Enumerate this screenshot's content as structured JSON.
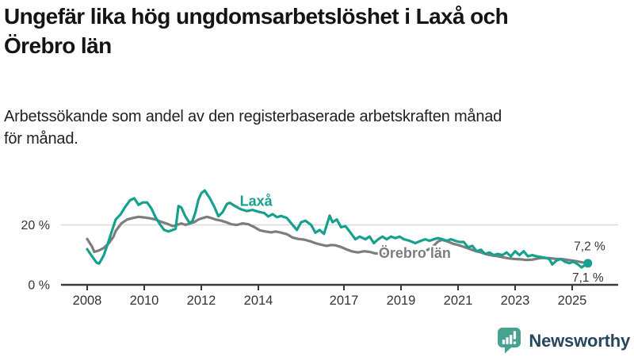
{
  "title": {
    "line1": "Ungefär lika hög ungdomsarbetslöshet i Laxå och",
    "line2": "Örebro län"
  },
  "subtitle": {
    "line1": "Arbetssökande som andel av den registerbaserade arbetskraften månad",
    "line2": "för månad."
  },
  "chart_data": {
    "type": "line",
    "title": "Ungefär lika hög ungdomsarbetslöshet i Laxå och Örebro län",
    "subtitle": "Arbetssökande som andel av den registerbaserade arbetskraften månad för månad.",
    "unit": "%",
    "x_range": [
      2008,
      2025.6
    ],
    "y_range": [
      0,
      33
    ],
    "grid": "horizontal-only",
    "legend_position": "inline-labels",
    "x_ticks": [
      "2008",
      "2010",
      "2012",
      "2014",
      "2017",
      "2019",
      "2021",
      "2023",
      "2025"
    ],
    "y_ticks": [
      {
        "value": 0,
        "label": "0 %"
      },
      {
        "value": 20,
        "label": "20 %"
      }
    ],
    "grid_color": "#d9d9d9",
    "axis_color": "#3c3c3c",
    "axis_text_color": "#333333",
    "series": [
      {
        "id": "orebro-lan",
        "name": "Örebro län",
        "color": "#7d7d7d",
        "end_dot": false,
        "label_at": [
          2018.22,
          10.3
        ],
        "last_value_label": "7,1 %",
        "points": [
          [
            2008.0,
            15.3
          ],
          [
            2008.17,
            12.8
          ],
          [
            2008.25,
            11.0
          ],
          [
            2008.42,
            11.5
          ],
          [
            2008.58,
            12.3
          ],
          [
            2008.75,
            13.8
          ],
          [
            2008.92,
            16.0
          ],
          [
            2009.0,
            18.0
          ],
          [
            2009.2,
            20.5
          ],
          [
            2009.4,
            21.8
          ],
          [
            2009.6,
            22.3
          ],
          [
            2009.8,
            22.7
          ],
          [
            2010.0,
            22.5
          ],
          [
            2010.2,
            22.2
          ],
          [
            2010.4,
            21.8
          ],
          [
            2010.6,
            21.0
          ],
          [
            2010.8,
            20.4
          ],
          [
            2011.0,
            19.6
          ],
          [
            2011.15,
            20.0
          ],
          [
            2011.3,
            20.5
          ],
          [
            2011.45,
            20.0
          ],
          [
            2011.6,
            20.5
          ],
          [
            2011.75,
            20.9
          ],
          [
            2011.9,
            21.8
          ],
          [
            2012.05,
            22.3
          ],
          [
            2012.2,
            22.7
          ],
          [
            2012.35,
            22.3
          ],
          [
            2012.5,
            21.8
          ],
          [
            2012.7,
            21.4
          ],
          [
            2012.9,
            20.8
          ],
          [
            2013.05,
            20.2
          ],
          [
            2013.25,
            20.0
          ],
          [
            2013.45,
            20.5
          ],
          [
            2013.65,
            20.2
          ],
          [
            2013.85,
            19.3
          ],
          [
            2014.05,
            18.2
          ],
          [
            2014.25,
            17.8
          ],
          [
            2014.45,
            17.5
          ],
          [
            2014.6,
            17.8
          ],
          [
            2014.8,
            17.4
          ],
          [
            2015.0,
            16.9
          ],
          [
            2015.2,
            15.8
          ],
          [
            2015.4,
            15.3
          ],
          [
            2015.6,
            15.1
          ],
          [
            2015.8,
            14.6
          ],
          [
            2016.0,
            13.9
          ],
          [
            2016.2,
            13.4
          ],
          [
            2016.4,
            13.0
          ],
          [
            2016.55,
            13.3
          ],
          [
            2016.7,
            13.2
          ],
          [
            2016.9,
            12.6
          ],
          [
            2017.1,
            11.8
          ],
          [
            2017.3,
            11.1
          ],
          [
            2017.5,
            10.8
          ],
          [
            2017.7,
            11.2
          ],
          [
            2017.9,
            11.0
          ],
          [
            2018.1,
            10.5
          ],
          [
            2018.3,
            10.4
          ],
          [
            2018.5,
            10.2
          ],
          [
            2018.7,
            10.4
          ],
          [
            2018.9,
            10.3
          ],
          [
            2019.1,
            10.1
          ],
          [
            2019.3,
            10.0
          ],
          [
            2019.5,
            10.2
          ],
          [
            2019.7,
            10.8
          ],
          [
            2019.9,
            11.5
          ],
          [
            2020.1,
            12.6
          ],
          [
            2020.3,
            14.5
          ],
          [
            2020.45,
            15.0
          ],
          [
            2020.6,
            14.6
          ],
          [
            2020.8,
            13.8
          ],
          [
            2021.0,
            13.3
          ],
          [
            2021.2,
            12.7
          ],
          [
            2021.4,
            12.0
          ],
          [
            2021.6,
            11.3
          ],
          [
            2021.8,
            10.8
          ],
          [
            2022.0,
            10.2
          ],
          [
            2022.2,
            9.8
          ],
          [
            2022.4,
            9.5
          ],
          [
            2022.6,
            9.1
          ],
          [
            2022.8,
            8.8
          ],
          [
            2023.0,
            8.6
          ],
          [
            2023.2,
            8.5
          ],
          [
            2023.4,
            8.3
          ],
          [
            2023.6,
            8.4
          ],
          [
            2023.8,
            8.8
          ],
          [
            2024.0,
            9.0
          ],
          [
            2024.2,
            8.9
          ],
          [
            2024.4,
            8.7
          ],
          [
            2024.6,
            8.6
          ],
          [
            2024.8,
            8.4
          ],
          [
            2025.0,
            8.1
          ],
          [
            2025.15,
            7.9
          ],
          [
            2025.3,
            7.6
          ],
          [
            2025.45,
            7.3
          ],
          [
            2025.55,
            7.1
          ]
        ]
      },
      {
        "id": "laxa",
        "name": "Laxå",
        "color": "#17a08f",
        "end_dot": true,
        "label_at": [
          2013.35,
          27.6
        ],
        "last_value_label": "7,2 %",
        "points": [
          [
            2008.0,
            11.9
          ],
          [
            2008.17,
            9.5
          ],
          [
            2008.33,
            7.4
          ],
          [
            2008.42,
            7.1
          ],
          [
            2008.58,
            9.8
          ],
          [
            2008.75,
            14.5
          ],
          [
            2008.92,
            19.5
          ],
          [
            2009.0,
            21.8
          ],
          [
            2009.17,
            23.5
          ],
          [
            2009.33,
            26.0
          ],
          [
            2009.5,
            28.2
          ],
          [
            2009.65,
            28.9
          ],
          [
            2009.8,
            26.7
          ],
          [
            2009.95,
            27.5
          ],
          [
            2010.1,
            27.5
          ],
          [
            2010.25,
            25.5
          ],
          [
            2010.4,
            22.5
          ],
          [
            2010.55,
            20.2
          ],
          [
            2010.7,
            18.3
          ],
          [
            2010.85,
            17.8
          ],
          [
            2011.0,
            18.3
          ],
          [
            2011.1,
            18.7
          ],
          [
            2011.2,
            26.3
          ],
          [
            2011.3,
            25.8
          ],
          [
            2011.45,
            22.7
          ],
          [
            2011.6,
            20.5
          ],
          [
            2011.7,
            21.5
          ],
          [
            2011.8,
            24.4
          ],
          [
            2011.9,
            28.4
          ],
          [
            2012.0,
            30.6
          ],
          [
            2012.12,
            31.5
          ],
          [
            2012.3,
            28.9
          ],
          [
            2012.45,
            26.2
          ],
          [
            2012.6,
            22.9
          ],
          [
            2012.75,
            24.3
          ],
          [
            2012.9,
            27.0
          ],
          [
            2013.0,
            27.4
          ],
          [
            2013.2,
            26.2
          ],
          [
            2013.4,
            25.2
          ],
          [
            2013.6,
            24.6
          ],
          [
            2013.8,
            25.0
          ],
          [
            2014.0,
            24.4
          ],
          [
            2014.2,
            24.0
          ],
          [
            2014.35,
            22.8
          ],
          [
            2014.5,
            23.6
          ],
          [
            2014.65,
            22.6
          ],
          [
            2014.8,
            23.0
          ],
          [
            2015.0,
            22.3
          ],
          [
            2015.2,
            20.0
          ],
          [
            2015.35,
            18.3
          ],
          [
            2015.5,
            20.9
          ],
          [
            2015.65,
            21.4
          ],
          [
            2015.85,
            20.0
          ],
          [
            2016.0,
            17.4
          ],
          [
            2016.15,
            18.3
          ],
          [
            2016.3,
            17.0
          ],
          [
            2016.5,
            23.1
          ],
          [
            2016.6,
            20.9
          ],
          [
            2016.75,
            21.8
          ],
          [
            2016.9,
            19.2
          ],
          [
            2017.05,
            19.6
          ],
          [
            2017.2,
            17.8
          ],
          [
            2017.4,
            15.2
          ],
          [
            2017.55,
            16.1
          ],
          [
            2017.75,
            15.2
          ],
          [
            2017.9,
            16.1
          ],
          [
            2018.05,
            13.9
          ],
          [
            2018.2,
            15.2
          ],
          [
            2018.35,
            16.1
          ],
          [
            2018.5,
            15.2
          ],
          [
            2018.65,
            16.1
          ],
          [
            2018.8,
            15.6
          ],
          [
            2018.95,
            16.1
          ],
          [
            2019.1,
            15.2
          ],
          [
            2019.3,
            14.7
          ],
          [
            2019.5,
            13.9
          ],
          [
            2019.7,
            14.7
          ],
          [
            2019.85,
            15.2
          ],
          [
            2020.0,
            14.7
          ],
          [
            2020.15,
            15.2
          ],
          [
            2020.3,
            15.6
          ],
          [
            2020.45,
            15.2
          ],
          [
            2020.6,
            14.7
          ],
          [
            2020.75,
            15.2
          ],
          [
            2020.9,
            14.7
          ],
          [
            2021.05,
            14.3
          ],
          [
            2021.2,
            14.3
          ],
          [
            2021.35,
            12.5
          ],
          [
            2021.5,
            13.0
          ],
          [
            2021.65,
            11.2
          ],
          [
            2021.8,
            11.7
          ],
          [
            2021.95,
            10.3
          ],
          [
            2022.1,
            10.8
          ],
          [
            2022.25,
            9.9
          ],
          [
            2022.4,
            10.3
          ],
          [
            2022.55,
            9.9
          ],
          [
            2022.7,
            10.8
          ],
          [
            2022.85,
            9.5
          ],
          [
            2023.0,
            11.2
          ],
          [
            2023.15,
            9.9
          ],
          [
            2023.3,
            11.2
          ],
          [
            2023.45,
            9.5
          ],
          [
            2023.6,
            9.9
          ],
          [
            2023.75,
            9.5
          ],
          [
            2023.9,
            9.3
          ],
          [
            2024.05,
            9.0
          ],
          [
            2024.2,
            8.6
          ],
          [
            2024.3,
            6.8
          ],
          [
            2024.45,
            8.1
          ],
          [
            2024.6,
            8.6
          ],
          [
            2024.75,
            7.7
          ],
          [
            2024.9,
            7.2
          ],
          [
            2025.05,
            7.7
          ],
          [
            2025.2,
            6.8
          ],
          [
            2025.33,
            5.8
          ],
          [
            2025.45,
            6.6
          ],
          [
            2025.55,
            7.2
          ]
        ]
      }
    ],
    "end_labels": [
      {
        "text": "7,2 %",
        "year": 2025.06,
        "value": 12.6
      },
      {
        "text": "7,1 %",
        "year": 2025.0,
        "value": 2.2
      }
    ]
  },
  "footer": {
    "brand": "Newsworthy",
    "brand_color": "#26485c",
    "logo_icon": "bar-chart-speech-bubble-icon",
    "icon_color": "#46a392"
  }
}
